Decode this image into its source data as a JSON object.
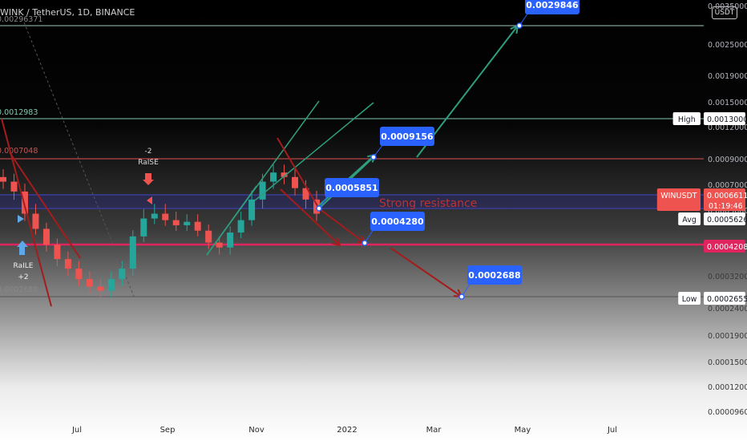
{
  "header": {
    "symbol_title": "WINK / TetherUS, 1D, BINANCE",
    "currency_unit": "USDT"
  },
  "colors": {
    "green": "#26a69a",
    "red": "#ef5350",
    "trend_red": "#a51c1c",
    "projection": "#2f9e7e",
    "label_blue": "#2962ff",
    "support_line": "#e0245e",
    "resistance_line": "#e04f4f",
    "strong_resistance_band": "#3a3d9a"
  },
  "chart_data": {
    "type": "line",
    "title": "WINK / TetherUS, 1D, BINANCE",
    "xlabel": "",
    "ylabel": "",
    "x_tick_labels": [
      "Jul",
      "Sep",
      "Nov",
      "2022",
      "Mar",
      "May",
      "Jul"
    ],
    "y_tick_labels": [
      "0.0035000",
      "0.0025000",
      "0.0019000",
      "0.0015000",
      "0.0012000",
      "0.0009000",
      "0.0007000",
      "0.0005600",
      "0.0003200",
      "0.0002400",
      "0.0001900",
      "0.0001500",
      "0.0001200",
      "0.0000960"
    ],
    "y_axis_labels": [
      {
        "label": "High",
        "value": "0.0013000",
        "color": "#ffffff",
        "text_color": "#131722"
      },
      {
        "label": "WINUSDT",
        "value": "0.0006611",
        "sub": "01:19:46",
        "color": "#ef5350",
        "text_color": "#ffffff"
      },
      {
        "label": "Avg",
        "value": "0.0005626",
        "color": "#ffffff",
        "text_color": "#131722"
      },
      {
        "label": "",
        "value": "0.0004208",
        "color": "#e0245e",
        "text_color": "#ffffff"
      },
      {
        "label": "Low",
        "value": "0.0002655",
        "color": "#ffffff",
        "text_color": "#131722"
      }
    ],
    "left_edge_labels": [
      "0.00296371",
      "0.0012983",
      "0.0007048",
      "0.0002688"
    ],
    "price_range": {
      "high": 0.0013,
      "low": 0.0002655,
      "average": 0.0005626,
      "last": 0.0006611
    },
    "horizontal_levels": [
      0.0029846,
      0.0013,
      0.0009,
      0.000655,
      0.00061,
      0.0004208,
      0.0002655
    ],
    "projection_labels": [
      {
        "text": "0.0029846",
        "value": 0.0029846
      },
      {
        "text": "0.0009156",
        "value": 0.0009156
      },
      {
        "text": "0.0005851",
        "value": 0.0005851
      },
      {
        "text": "0.0004280",
        "value": 0.000428
      },
      {
        "text": "0.0002688",
        "value": 0.0002688
      }
    ],
    "annotations": [
      "Strong resistance",
      "RaISE",
      "-2",
      "RaILE",
      "+2"
    ],
    "series": [
      {
        "values": [
          0.00074,
          0.00068,
          0.00058,
          0.0005,
          0.00042,
          0.00037,
          0.00034,
          0.00031,
          0.00029,
          0.00028,
          0.00031,
          0.00034,
          0.00046,
          0.00056,
          0.00058,
          0.00055,
          0.00052,
          0.00054,
          0.00049,
          0.00043,
          0.00041,
          0.00048,
          0.00055,
          0.00064,
          0.00074,
          0.0008,
          0.00077,
          0.0007,
          0.00064,
          0.00058
        ]
      }
    ],
    "grid": false,
    "legend": "none"
  }
}
